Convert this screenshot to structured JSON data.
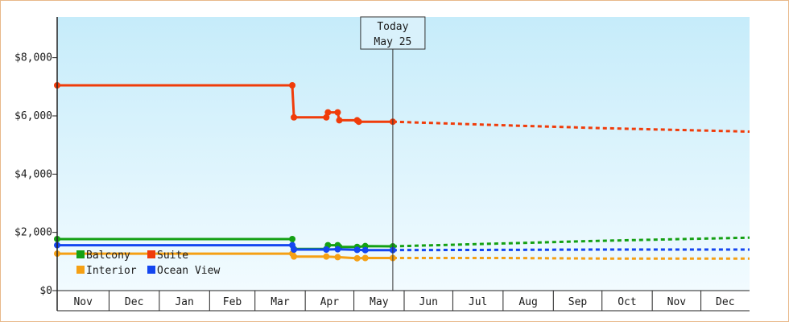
{
  "chart_data": {
    "type": "line",
    "title": "",
    "xlabel": "",
    "ylabel": "",
    "ylim": [
      0,
      9400
    ],
    "y_ticks": [
      {
        "value": 0,
        "label": "$0"
      },
      {
        "value": 2000,
        "label": "$2,000"
      },
      {
        "value": 4000,
        "label": "$4,000"
      },
      {
        "value": 6000,
        "label": "$6,000"
      },
      {
        "value": 8000,
        "label": "$8,000"
      }
    ],
    "x_domain": [
      "2024-10-30",
      "2025-12-31"
    ],
    "months": [
      {
        "label": "Nov",
        "start": "2024-10-30",
        "end": "2024-12-01"
      },
      {
        "label": "Dec",
        "start": "2024-12-01",
        "end": "2025-01-01"
      },
      {
        "label": "Jan",
        "start": "2025-01-01",
        "end": "2025-02-01"
      },
      {
        "label": "Feb",
        "start": "2025-02-01",
        "end": "2025-03-01"
      },
      {
        "label": "Mar",
        "start": "2025-03-01",
        "end": "2025-04-01"
      },
      {
        "label": "Apr",
        "start": "2025-04-01",
        "end": "2025-05-01"
      },
      {
        "label": "May",
        "start": "2025-05-01",
        "end": "2025-06-01"
      },
      {
        "label": "Jun",
        "start": "2025-06-01",
        "end": "2025-07-01"
      },
      {
        "label": "Jul",
        "start": "2025-07-01",
        "end": "2025-08-01"
      },
      {
        "label": "Aug",
        "start": "2025-08-01",
        "end": "2025-09-01"
      },
      {
        "label": "Sep",
        "start": "2025-09-01",
        "end": "2025-10-01"
      },
      {
        "label": "Oct",
        "start": "2025-10-01",
        "end": "2025-11-01"
      },
      {
        "label": "Nov",
        "start": "2025-11-01",
        "end": "2025-12-01"
      },
      {
        "label": "Dec",
        "start": "2025-12-01",
        "end": "2025-12-31"
      }
    ],
    "today": {
      "date": "2025-05-25",
      "line1": "Today",
      "line2": "May 25"
    },
    "legend": {
      "placement": "bottom-left"
    },
    "series": [
      {
        "name": "Balcony",
        "color": "#14a014",
        "points": [
          {
            "date": "2024-10-30",
            "value": 1770
          },
          {
            "date": "2025-03-24",
            "value": 1770
          },
          {
            "date": "2025-03-25",
            "value": 1430
          },
          {
            "date": "2025-04-14",
            "value": 1430
          },
          {
            "date": "2025-04-15",
            "value": 1560
          },
          {
            "date": "2025-04-21",
            "value": 1560
          },
          {
            "date": "2025-04-22",
            "value": 1500
          },
          {
            "date": "2025-05-03",
            "value": 1500
          },
          {
            "date": "2025-05-08",
            "value": 1530
          },
          {
            "date": "2025-05-25",
            "value": 1520
          }
        ],
        "forecast": [
          {
            "date": "2025-05-25",
            "value": 1520
          },
          {
            "date": "2025-08-01",
            "value": 1620
          },
          {
            "date": "2025-10-01",
            "value": 1710
          },
          {
            "date": "2025-12-31",
            "value": 1820
          }
        ]
      },
      {
        "name": "Suite",
        "color": "#f03c0a",
        "points": [
          {
            "date": "2024-10-30",
            "value": 7050
          },
          {
            "date": "2025-03-24",
            "value": 7050
          },
          {
            "date": "2025-03-25",
            "value": 5950
          },
          {
            "date": "2025-04-14",
            "value": 5950
          },
          {
            "date": "2025-04-15",
            "value": 6120
          },
          {
            "date": "2025-04-21",
            "value": 6120
          },
          {
            "date": "2025-04-22",
            "value": 5850
          },
          {
            "date": "2025-05-03",
            "value": 5850
          },
          {
            "date": "2025-05-04",
            "value": 5800
          },
          {
            "date": "2025-05-25",
            "value": 5800
          }
        ],
        "forecast": [
          {
            "date": "2025-05-25",
            "value": 5800
          },
          {
            "date": "2025-08-01",
            "value": 5680
          },
          {
            "date": "2025-10-01",
            "value": 5580
          },
          {
            "date": "2025-12-31",
            "value": 5460
          }
        ]
      },
      {
        "name": "Interior",
        "color": "#f5a014",
        "points": [
          {
            "date": "2024-10-30",
            "value": 1270
          },
          {
            "date": "2025-03-24",
            "value": 1270
          },
          {
            "date": "2025-03-25",
            "value": 1170
          },
          {
            "date": "2025-04-14",
            "value": 1170
          },
          {
            "date": "2025-04-21",
            "value": 1150
          },
          {
            "date": "2025-05-03",
            "value": 1110
          },
          {
            "date": "2025-05-08",
            "value": 1120
          },
          {
            "date": "2025-05-25",
            "value": 1120
          }
        ],
        "forecast": [
          {
            "date": "2025-05-25",
            "value": 1120
          },
          {
            "date": "2025-08-01",
            "value": 1120
          },
          {
            "date": "2025-10-01",
            "value": 1100
          },
          {
            "date": "2025-12-31",
            "value": 1100
          }
        ]
      },
      {
        "name": "Ocean View",
        "color": "#1446f0",
        "points": [
          {
            "date": "2024-10-30",
            "value": 1560
          },
          {
            "date": "2025-03-24",
            "value": 1560
          },
          {
            "date": "2025-03-25",
            "value": 1410
          },
          {
            "date": "2025-04-14",
            "value": 1410
          },
          {
            "date": "2025-04-21",
            "value": 1420
          },
          {
            "date": "2025-05-03",
            "value": 1400
          },
          {
            "date": "2025-05-08",
            "value": 1390
          },
          {
            "date": "2025-05-25",
            "value": 1390
          }
        ],
        "forecast": [
          {
            "date": "2025-05-25",
            "value": 1390
          },
          {
            "date": "2025-08-01",
            "value": 1400
          },
          {
            "date": "2025-10-01",
            "value": 1410
          },
          {
            "date": "2025-12-31",
            "value": 1410
          }
        ]
      }
    ]
  }
}
